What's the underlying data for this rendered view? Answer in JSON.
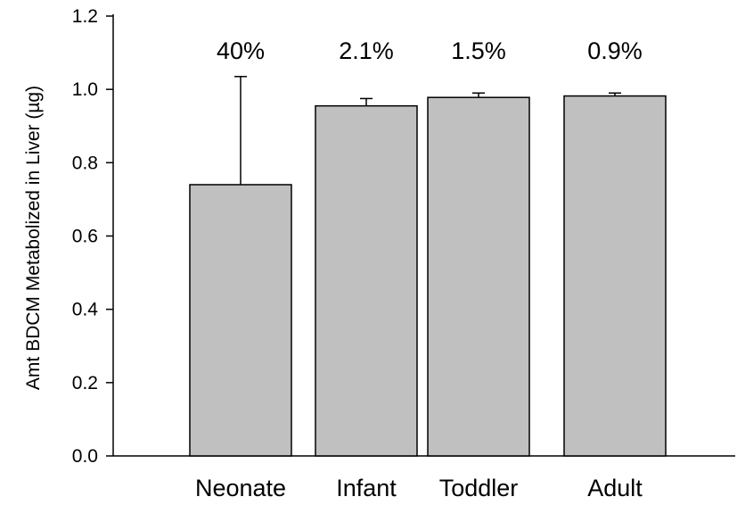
{
  "chart_data": {
    "type": "bar",
    "title": "",
    "xlabel": "",
    "ylabel": "Amt BDCM Metabolized in Liver (µg)",
    "ylim": [
      0,
      1.2
    ],
    "yticks": [
      "0.0",
      "0.2",
      "0.4",
      "0.6",
      "0.8",
      "1.0",
      "1.2"
    ],
    "categories": [
      "Neonate",
      "Infant",
      "Toddler",
      "Adult"
    ],
    "values": [
      0.74,
      0.955,
      0.978,
      0.982
    ],
    "error_upper": [
      1.035,
      0.975,
      0.99,
      0.99
    ],
    "data_labels": [
      "40%",
      "2.1%",
      "1.5%",
      "0.9%"
    ],
    "bar_color": "#c0c0c0",
    "grid": false,
    "legend": "none"
  }
}
